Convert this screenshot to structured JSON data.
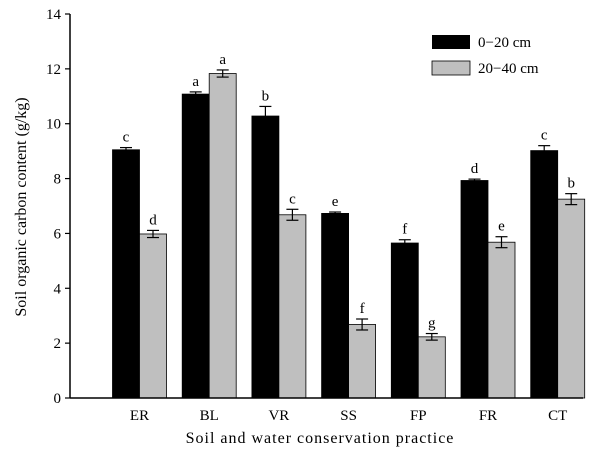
{
  "chart_data": {
    "type": "bar",
    "title": "",
    "xlabel": "Soil and water conservation practice",
    "ylabel": "Soil organic carbon content (g/kg)",
    "ylim": [
      0,
      14
    ],
    "yticks": [
      "0",
      "2",
      "4",
      "6",
      "8",
      "10",
      "12",
      "14"
    ],
    "grid": false,
    "legend_position": "top-right",
    "categories": [
      "ER",
      "BL",
      "VR",
      "SS",
      "FP",
      "FR",
      "CT"
    ],
    "series": [
      {
        "name": "0−20 cm",
        "color": "#000000",
        "values": [
          9.05,
          11.08,
          10.28,
          6.73,
          5.65,
          7.93,
          9.02
        ],
        "errors": [
          0.08,
          0.08,
          0.35,
          0.05,
          0.12,
          0.05,
          0.18
        ],
        "letters": [
          "c",
          "a",
          "b",
          "e",
          "f",
          "d",
          "c"
        ]
      },
      {
        "name": "20−40 cm",
        "color": "#bfbfbf",
        "values": [
          5.98,
          11.83,
          6.68,
          2.68,
          2.23,
          5.68,
          7.25
        ],
        "errors": [
          0.13,
          0.13,
          0.2,
          0.2,
          0.12,
          0.2,
          0.2
        ],
        "letters": [
          "d",
          "a",
          "c",
          "f",
          "g",
          "e",
          "b"
        ]
      }
    ]
  }
}
